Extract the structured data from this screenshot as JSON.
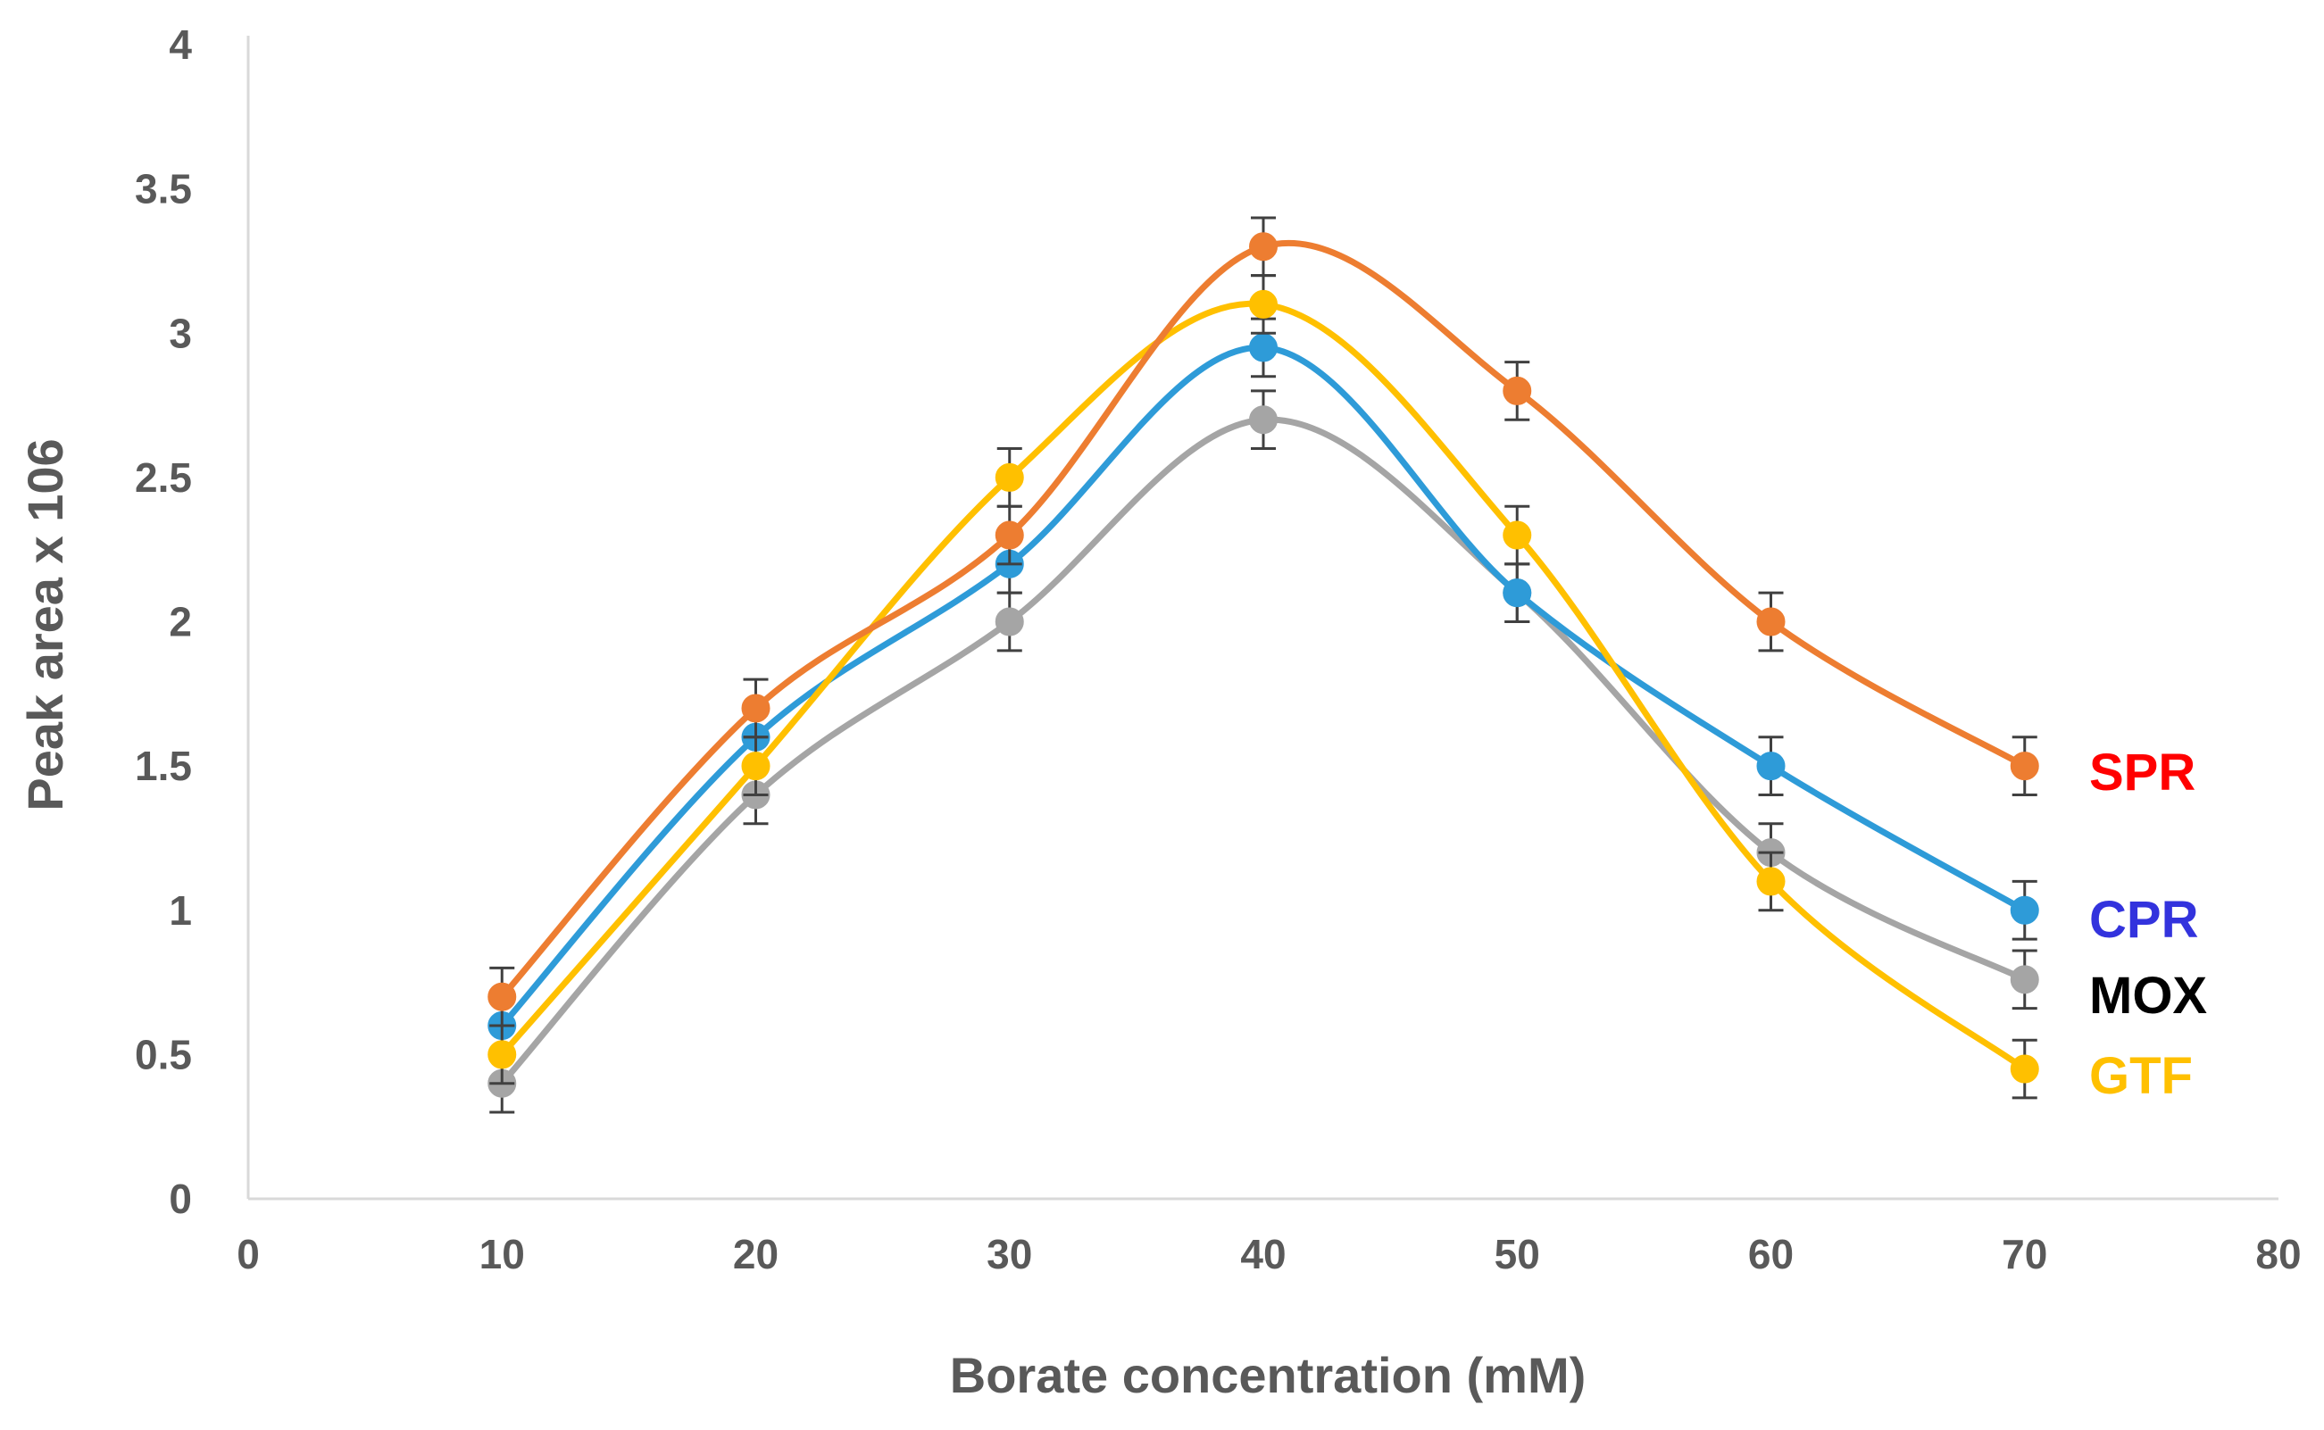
{
  "chart_data": {
    "type": "line",
    "title": "",
    "xlabel": "Borate concentration (mM)",
    "ylabel": "Peak area x 106",
    "xlim": [
      0,
      80
    ],
    "ylim": [
      0,
      4
    ],
    "x_ticks": [
      "0",
      "10",
      "20",
      "30",
      "40",
      "50",
      "60",
      "70",
      "80"
    ],
    "y_ticks": [
      "0",
      "0.5",
      "1",
      "1.5",
      "2",
      "2.5",
      "3",
      "3.5",
      "4"
    ],
    "grid": false,
    "legend": "inline-right",
    "x": [
      10,
      20,
      30,
      40,
      50,
      60,
      70
    ],
    "series": [
      {
        "name": "SPR",
        "color": "#ED7D31",
        "label_color": "#FF0000",
        "values": [
          0.7,
          1.7,
          2.3,
          3.3,
          2.8,
          2.0,
          1.5
        ],
        "error": [
          0.1,
          0.1,
          0.1,
          0.1,
          0.1,
          0.1,
          0.1
        ]
      },
      {
        "name": "CPR",
        "color": "#2E9BD8",
        "label_color": "#3333DD",
        "values": [
          0.6,
          1.6,
          2.2,
          2.95,
          2.1,
          1.5,
          1.0
        ],
        "error": [
          0.1,
          0.1,
          0.1,
          0.1,
          0.1,
          0.1,
          0.1
        ]
      },
      {
        "name": "MOX",
        "color": "#A5A5A5",
        "label_color": "#000000",
        "values": [
          0.4,
          1.4,
          2.0,
          2.7,
          2.1,
          1.2,
          0.76
        ],
        "error": [
          0.1,
          0.1,
          0.1,
          0.1,
          0.1,
          0.1,
          0.1
        ]
      },
      {
        "name": "GTF",
        "color": "#FFC000",
        "label_color": "#FFC000",
        "values": [
          0.5,
          1.5,
          2.5,
          3.1,
          2.3,
          1.1,
          0.45
        ],
        "error": [
          0.1,
          0.1,
          0.1,
          0.1,
          0.1,
          0.1,
          0.1
        ]
      }
    ]
  }
}
